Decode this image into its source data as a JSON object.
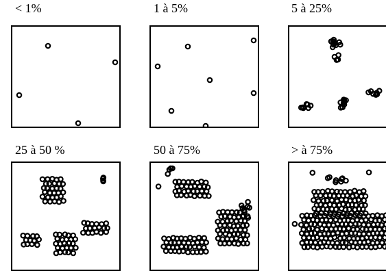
{
  "panels": [
    {
      "label": "< 1%"
    },
    {
      "label": "1 à 5%"
    },
    {
      "label": "5 à 25%"
    },
    {
      "label": "25 à 50 %"
    },
    {
      "label": "50 à 75%"
    },
    {
      "label": "> à 75%"
    }
  ]
}
